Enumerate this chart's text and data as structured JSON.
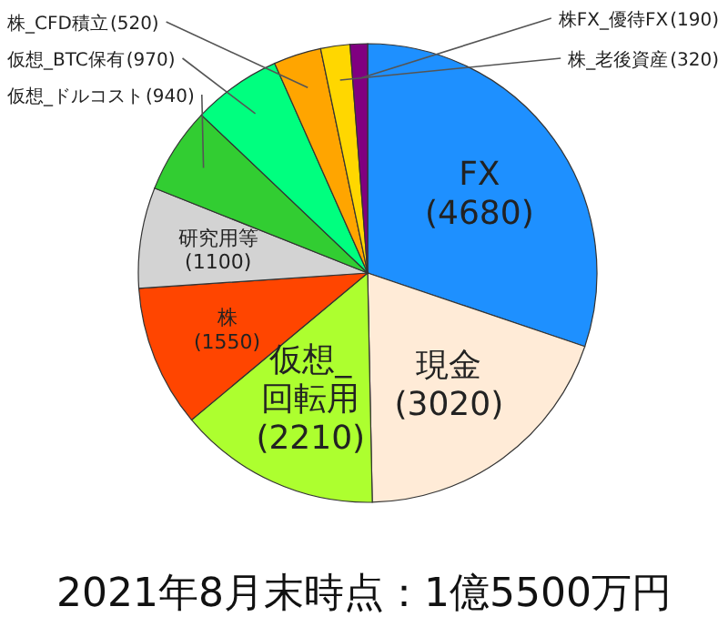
{
  "chart_data": {
    "type": "pie",
    "title": "2021年8月末時点：1億5500万円",
    "categories": [
      "FX",
      "現金",
      "仮想_回転用",
      "株",
      "研究用等",
      "仮想_ドルコスト",
      "仮想_BTC保有",
      "株_CFD積立",
      "株_老後資産",
      "株FX_優待FX"
    ],
    "values": [
      4680,
      3020,
      2210,
      1550,
      1100,
      940,
      970,
      520,
      320,
      190
    ],
    "colors": [
      "#1e90ff",
      "#ffebd7",
      "#adff2f",
      "#ff4500",
      "#d3d3d3",
      "#32cd32",
      "#00ff7f",
      "#ffa500",
      "#ffd700",
      "#800080"
    ],
    "value_labels": [
      "(4680)",
      "(3020)",
      "(2210)",
      "(1550)",
      "(1100)",
      "(940)",
      "(970)",
      "(520)",
      "(320)",
      "(190)"
    ]
  }
}
